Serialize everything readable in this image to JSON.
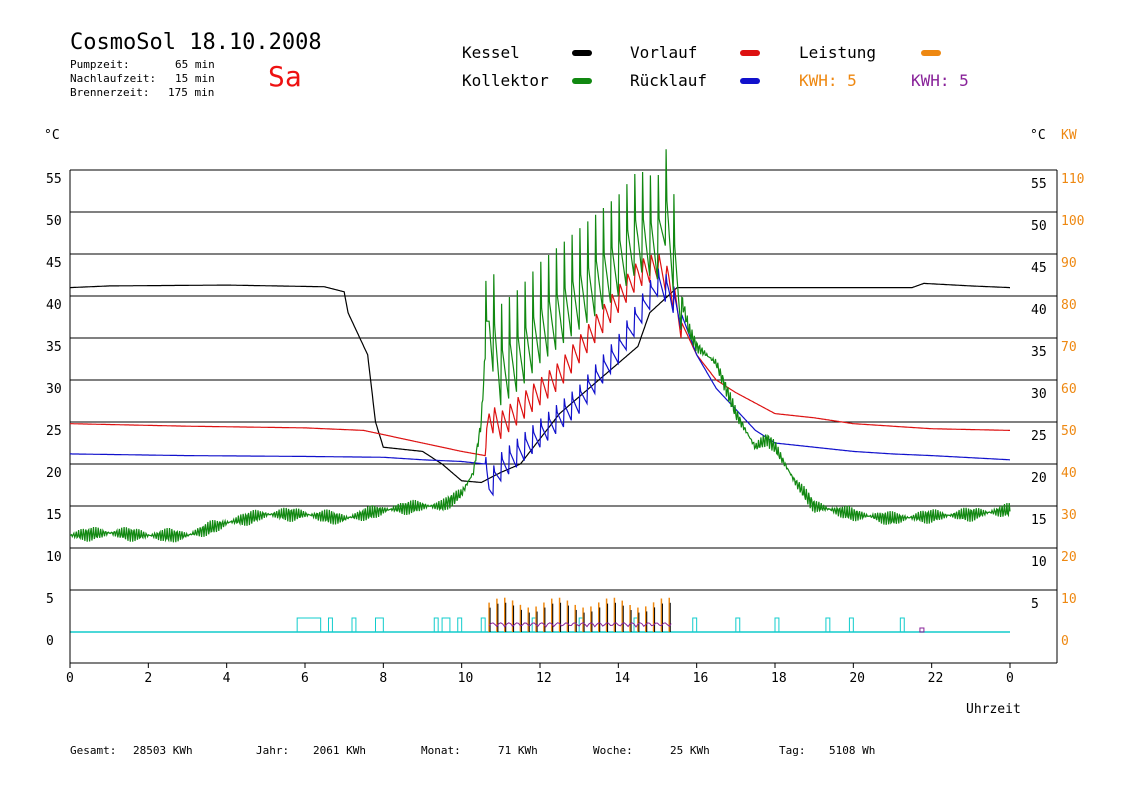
{
  "header": {
    "title": "CosmoSol 18.10.2008",
    "day": "Sa",
    "info": [
      {
        "label": "Pumpzeit:",
        "value": "65 min"
      },
      {
        "label": "Nachlaufzeit:",
        "value": "15 min"
      },
      {
        "label": "Brennerzeit:",
        "value": "175 min"
      }
    ]
  },
  "legend": [
    {
      "label": "Kessel",
      "color": "#000000"
    },
    {
      "label": "Vorlauf",
      "color": "#dd1111"
    },
    {
      "label": "Leistung",
      "color": "#ee8811"
    },
    {
      "label": "Kollektor",
      "color": "#118811"
    },
    {
      "label": "Rücklauf",
      "color": "#1111cc"
    },
    {
      "label": "KWH: 5",
      "color": "#ee8811"
    },
    {
      "label": "KWH: 5",
      "color": "#882299"
    }
  ],
  "axes": {
    "left_unit": "°C",
    "right_unit_c": "°C",
    "right_unit_kw": "KW",
    "xlabel": "Uhrzeit",
    "x_ticks": [
      "0",
      "2",
      "4",
      "6",
      "8",
      "10",
      "12",
      "14",
      "16",
      "18",
      "20",
      "22",
      "0"
    ],
    "left_ticks": [
      "0",
      "5",
      "10",
      "15",
      "20",
      "25",
      "30",
      "35",
      "40",
      "45",
      "50",
      "55"
    ],
    "right_c_ticks": [
      "5",
      "10",
      "15",
      "20",
      "25",
      "30",
      "35",
      "40",
      "45",
      "50",
      "55"
    ],
    "right_kw_ticks": [
      "0",
      "10",
      "20",
      "30",
      "40",
      "50",
      "60",
      "70",
      "80",
      "90",
      "100",
      "110"
    ]
  },
  "footer": [
    {
      "label": "Gesamt:",
      "value": "28503 KWh"
    },
    {
      "label": "Jahr:",
      "value": "2061 KWh"
    },
    {
      "label": "Monat:",
      "value": "71 KWh"
    },
    {
      "label": "Woche:",
      "value": "25 KWh"
    },
    {
      "label": "Tag:",
      "value": "5108 Wh"
    }
  ],
  "chart_data": {
    "type": "line",
    "xlim": [
      0,
      24
    ],
    "ylim": [
      0,
      55
    ],
    "y2lim": [
      0,
      110
    ],
    "grid": true,
    "series": [
      {
        "name": "Kessel",
        "color": "#000000",
        "points": [
          [
            0,
            41
          ],
          [
            1,
            41.2
          ],
          [
            4,
            41.3
          ],
          [
            6.5,
            41.1
          ],
          [
            7,
            40.5
          ],
          [
            7.1,
            38
          ],
          [
            7.3,
            36
          ],
          [
            7.5,
            34
          ],
          [
            7.6,
            33
          ],
          [
            7.8,
            25
          ],
          [
            8,
            22
          ],
          [
            9,
            21.5
          ],
          [
            9.5,
            20
          ],
          [
            10,
            18
          ],
          [
            10.5,
            17.8
          ],
          [
            11,
            19
          ],
          [
            11.5,
            20
          ],
          [
            12,
            23
          ],
          [
            12.5,
            26
          ],
          [
            13,
            28
          ],
          [
            13.5,
            30
          ],
          [
            14,
            32
          ],
          [
            14.5,
            34
          ],
          [
            14.8,
            38
          ],
          [
            15.5,
            41
          ],
          [
            16,
            41
          ],
          [
            20,
            41
          ],
          [
            21.5,
            41
          ],
          [
            21.8,
            41.5
          ],
          [
            23,
            41.2
          ],
          [
            24,
            41
          ]
        ]
      },
      {
        "name": "Vorlauf",
        "color": "#dd1111",
        "points": [
          [
            0,
            24.8
          ],
          [
            3,
            24.5
          ],
          [
            6,
            24.3
          ],
          [
            7.5,
            24
          ],
          [
            8,
            23.5
          ],
          [
            9,
            22.5
          ],
          [
            10,
            21.5
          ],
          [
            10.6,
            21
          ],
          [
            10.7,
            26
          ],
          [
            11,
            25
          ],
          [
            11.5,
            27
          ],
          [
            12,
            29
          ],
          [
            12.5,
            31
          ],
          [
            13,
            34
          ],
          [
            13.5,
            37
          ],
          [
            14,
            40
          ],
          [
            14.5,
            43
          ],
          [
            15,
            44
          ],
          [
            15.3,
            42
          ],
          [
            15.6,
            37
          ],
          [
            16,
            33
          ],
          [
            16.5,
            30
          ],
          [
            17,
            28.5
          ],
          [
            18,
            26
          ],
          [
            19,
            25.5
          ],
          [
            20,
            24.8
          ],
          [
            21,
            24.5
          ],
          [
            22,
            24.2
          ],
          [
            24,
            24
          ]
        ]
      },
      {
        "name": "Rücklauf",
        "color": "#1111cc",
        "points": [
          [
            0,
            21.2
          ],
          [
            3,
            21
          ],
          [
            6,
            20.9
          ],
          [
            8,
            20.8
          ],
          [
            9,
            20.5
          ],
          [
            10,
            20.3
          ],
          [
            10.6,
            20
          ],
          [
            10.7,
            17.5
          ],
          [
            11,
            20
          ],
          [
            11.5,
            22
          ],
          [
            12,
            24
          ],
          [
            12.5,
            26
          ],
          [
            13,
            28
          ],
          [
            13.5,
            31
          ],
          [
            14,
            34
          ],
          [
            14.5,
            38
          ],
          [
            15,
            42
          ],
          [
            15.3,
            41
          ],
          [
            15.6,
            38
          ],
          [
            16,
            33
          ],
          [
            16.5,
            29
          ],
          [
            17,
            26.5
          ],
          [
            17.5,
            24
          ],
          [
            18,
            22.5
          ],
          [
            19,
            22
          ],
          [
            20,
            21.5
          ],
          [
            21,
            21.2
          ],
          [
            22,
            21
          ],
          [
            24,
            20.5
          ]
        ]
      },
      {
        "name": "Kollektor",
        "color": "#118811",
        "points": [
          [
            0,
            11.5
          ],
          [
            1,
            11.8
          ],
          [
            2,
            11.5
          ],
          [
            3,
            11.5
          ],
          [
            4,
            13
          ],
          [
            5,
            14
          ],
          [
            6,
            14
          ],
          [
            7,
            13.5
          ],
          [
            8,
            14.5
          ],
          [
            9,
            15
          ],
          [
            9.5,
            15
          ],
          [
            10,
            16.5
          ],
          [
            10.3,
            19
          ],
          [
            10.5,
            25
          ],
          [
            10.6,
            33
          ],
          [
            10.7,
            37
          ],
          [
            11,
            31
          ],
          [
            11.5,
            33
          ],
          [
            12,
            36
          ],
          [
            12.5,
            38
          ],
          [
            13,
            40
          ],
          [
            13.5,
            42
          ],
          [
            14,
            44
          ],
          [
            14.5,
            47
          ],
          [
            15,
            46
          ],
          [
            15.2,
            50
          ],
          [
            15.5,
            42
          ],
          [
            15.8,
            36
          ],
          [
            16,
            34
          ],
          [
            16.5,
            32
          ],
          [
            17,
            26
          ],
          [
            17.5,
            22
          ],
          [
            17.8,
            23
          ],
          [
            18,
            22
          ],
          [
            18.5,
            18
          ],
          [
            19,
            15
          ],
          [
            20,
            14
          ],
          [
            21,
            13.5
          ],
          [
            22,
            13.8
          ],
          [
            23,
            14
          ],
          [
            24,
            14.5
          ]
        ]
      }
    ]
  }
}
